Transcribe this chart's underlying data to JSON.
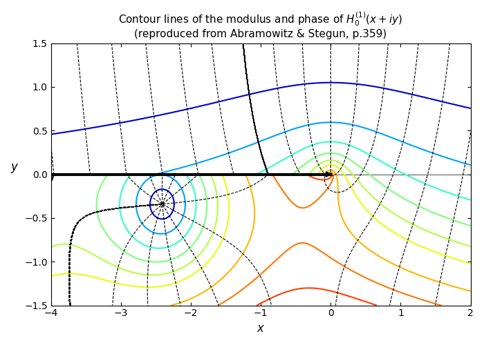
{
  "title_line1": "Contour lines of the modulus and phase of $H_0^{(1)}(x + iy)$",
  "title_line2": "(reproduced from Abramowitz & Stegun, p.359)",
  "xlabel": "$x$",
  "ylabel": "$y$",
  "xlim": [
    -4,
    2
  ],
  "ylim": [
    -1.5,
    1.5
  ],
  "figsize": [
    7.0,
    5.0
  ],
  "dpi": 100
}
